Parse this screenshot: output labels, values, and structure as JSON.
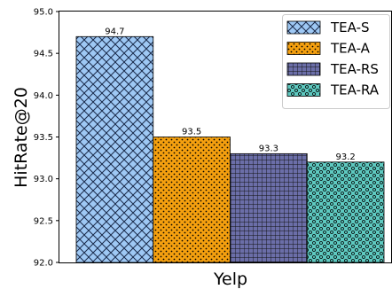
{
  "chart_data": {
    "type": "bar",
    "categories": [
      "Yelp"
    ],
    "series": [
      {
        "name": "TEA-S",
        "values": [
          94.7
        ],
        "data_label": "94.7",
        "color": "#9ec8f4",
        "pattern": "crosshatch-diagonal"
      },
      {
        "name": "TEA-A",
        "values": [
          93.5
        ],
        "data_label": "93.5",
        "color": "#f5a00f",
        "pattern": "dots-small"
      },
      {
        "name": "TEA-RS",
        "values": [
          93.3
        ],
        "data_label": "93.3",
        "color": "#6b6ea8",
        "pattern": "grid"
      },
      {
        "name": "TEA-RA",
        "values": [
          93.2
        ],
        "data_label": "93.2",
        "color": "#5ec9c0",
        "pattern": "circles"
      }
    ],
    "ylabel": "HitRate@20",
    "ylim": [
      92.0,
      95.0
    ],
    "yticks": [
      "92.0",
      "92.5",
      "93.0",
      "93.5",
      "94.0",
      "94.5",
      "95.0"
    ],
    "grid": false,
    "legend_position": "top-right"
  }
}
